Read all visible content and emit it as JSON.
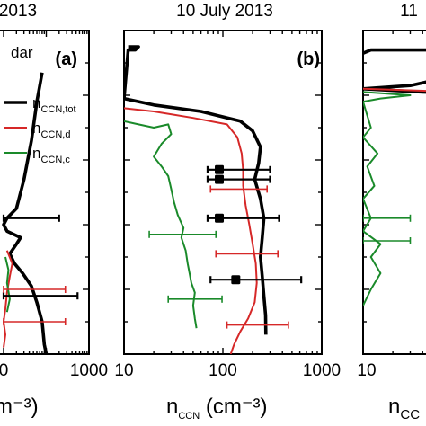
{
  "chart_data": [
    {
      "type": "line",
      "panel_label": "(a)",
      "title": "2013",
      "x_scale": "log",
      "xlim": [
        10,
        1000
      ],
      "x_tick_labels": [
        "0",
        "1000"
      ],
      "xlabel_visible": "m⁻³)",
      "legend": {
        "placement": "top-right",
        "entries": [
          {
            "label": "dar",
            "color": "#000000",
            "kind": "partial"
          },
          {
            "label": "n",
            "sub": "CCN,tot",
            "color": "#000000",
            "kind": "line"
          },
          {
            "label": "n",
            "sub": "CCN,d",
            "color": "#d62828",
            "kind": "line"
          },
          {
            "label": "n",
            "sub": "CCN,c",
            "color": "#1a8a2a",
            "kind": "line"
          }
        ]
      },
      "series": [
        {
          "name": "nCCN,tot",
          "color": "#000000",
          "points": [
            [
              80,
              0.13
            ],
            [
              60,
              0.22
            ],
            [
              45,
              0.34
            ],
            [
              30,
              0.46
            ],
            [
              20,
              0.55
            ],
            [
              12,
              0.58
            ],
            [
              10,
              0.6
            ],
            [
              12,
              0.62
            ],
            [
              25,
              0.64
            ],
            [
              20,
              0.66
            ],
            [
              14,
              0.69
            ],
            [
              18,
              0.72
            ],
            [
              28,
              0.75
            ],
            [
              45,
              0.79
            ],
            [
              60,
              0.84
            ],
            [
              80,
              0.9
            ],
            [
              90,
              0.97
            ],
            [
              100,
              1.0
            ]
          ]
        },
        {
          "name": "nCCN,d",
          "color": "#d62828",
          "points": [
            [
              12,
              0.68
            ],
            [
              16,
              0.72
            ],
            [
              14,
              0.76
            ],
            [
              12,
              0.81
            ],
            [
              11,
              0.86
            ],
            [
              10,
              0.9
            ],
            [
              11,
              0.94
            ],
            [
              10,
              0.98
            ]
          ]
        },
        {
          "name": "nCCN,c",
          "color": "#1a8a2a",
          "points": [
            [
              11,
              0.7
            ],
            [
              13,
              0.74
            ],
            [
              12,
              0.78
            ],
            [
              14,
              0.83
            ],
            [
              12,
              0.87
            ]
          ]
        }
      ],
      "errorbars": [
        {
          "color": "#000000",
          "x": 20,
          "y": 0.58,
          "xmin": 10,
          "xmax": 200
        },
        {
          "color": "#000000",
          "x": 20,
          "y": 0.82,
          "xmin": 10,
          "xmax": 540
        },
        {
          "color": "#d62828",
          "x": 20,
          "y": 0.8,
          "xmin": 10,
          "xmax": 280
        },
        {
          "color": "#d62828",
          "x": 20,
          "y": 0.9,
          "xmin": 10,
          "xmax": 280
        }
      ]
    },
    {
      "type": "line",
      "panel_label": "(b)",
      "title": "10 July 2013",
      "x_scale": "log",
      "xlim": [
        10,
        1000
      ],
      "x_tick_labels": [
        "10",
        "100",
        "1000"
      ],
      "xlabel": "n",
      "xlabel_sub": "CCN",
      "xlabel_units": "(cm⁻³)",
      "series": [
        {
          "name": "nCCN,tot",
          "color": "#000000",
          "points": [
            [
              11,
              0.05
            ],
            [
              14,
              0.05
            ],
            [
              13,
              0.06
            ],
            [
              11,
              0.06
            ],
            [
              10,
              0.21
            ],
            [
              20,
              0.23
            ],
            [
              60,
              0.25
            ],
            [
              150,
              0.28
            ],
            [
              200,
              0.31
            ],
            [
              240,
              0.36
            ],
            [
              230,
              0.41
            ],
            [
              210,
              0.46
            ],
            [
              240,
              0.52
            ],
            [
              260,
              0.58
            ],
            [
              250,
              0.64
            ],
            [
              240,
              0.7
            ],
            [
              250,
              0.76
            ],
            [
              260,
              0.82
            ],
            [
              270,
              0.88
            ],
            [
              272,
              0.94
            ]
          ]
        },
        {
          "name": "nCCN,d",
          "color": "#d62828",
          "points": [
            [
              10,
              0.24
            ],
            [
              20,
              0.25
            ],
            [
              50,
              0.27
            ],
            [
              110,
              0.29
            ],
            [
              140,
              0.33
            ],
            [
              155,
              0.38
            ],
            [
              160,
              0.43
            ],
            [
              160,
              0.48
            ],
            [
              170,
              0.54
            ],
            [
              185,
              0.6
            ],
            [
              200,
              0.66
            ],
            [
              215,
              0.72
            ],
            [
              220,
              0.78
            ],
            [
              210,
              0.84
            ],
            [
              180,
              0.89
            ],
            [
              150,
              0.93
            ],
            [
              130,
              0.97
            ],
            [
              120,
              1.0
            ]
          ]
        },
        {
          "name": "nCCN,c",
          "color": "#1a8a2a",
          "points": [
            [
              10,
              0.28
            ],
            [
              14,
              0.29
            ],
            [
              20,
              0.3
            ],
            [
              28,
              0.29
            ],
            [
              30,
              0.32
            ],
            [
              24,
              0.35
            ],
            [
              20,
              0.39
            ],
            [
              24,
              0.42
            ],
            [
              28,
              0.45
            ],
            [
              30,
              0.49
            ],
            [
              32,
              0.53
            ],
            [
              35,
              0.57
            ],
            [
              40,
              0.61
            ],
            [
              38,
              0.64
            ],
            [
              42,
              0.68
            ],
            [
              44,
              0.72
            ],
            [
              46,
              0.75
            ],
            [
              48,
              0.78
            ],
            [
              52,
              0.81
            ],
            [
              50,
              0.85
            ],
            [
              52,
              0.89
            ],
            [
              54,
              0.92
            ]
          ]
        }
      ],
      "errorbars": [
        {
          "color": "#000000",
          "x": 92,
          "y": 0.43,
          "xmin": 70,
          "xmax": 300
        },
        {
          "color": "#000000",
          "x": 92,
          "y": 0.46,
          "xmin": 70,
          "xmax": 300
        },
        {
          "color": "#000000",
          "x": 92,
          "y": 0.58,
          "xmin": 70,
          "xmax": 370
        },
        {
          "color": "#000000",
          "x": 135,
          "y": 0.77,
          "xmin": 75,
          "xmax": 620
        },
        {
          "color": "#d62828",
          "x": 100,
          "y": 0.49,
          "xmin": 75,
          "xmax": 280
        },
        {
          "color": "#d62828",
          "x": 170,
          "y": 0.69,
          "xmin": 85,
          "xmax": 360
        },
        {
          "color": "#d62828",
          "x": 200,
          "y": 0.91,
          "xmin": 110,
          "xmax": 460
        },
        {
          "color": "#1a8a2a",
          "x": 40,
          "y": 0.63,
          "xmin": 18,
          "xmax": 85
        },
        {
          "color": "#1a8a2a",
          "x": 50,
          "y": 0.83,
          "xmin": 28,
          "xmax": 98
        }
      ],
      "markers": [
        {
          "x": 92,
          "y": 0.43
        },
        {
          "x": 92,
          "y": 0.46
        },
        {
          "x": 92,
          "y": 0.58
        },
        {
          "x": 135,
          "y": 0.77
        }
      ]
    },
    {
      "type": "line",
      "title": "11",
      "x_scale": "log",
      "xlim": [
        10,
        1000
      ],
      "x_tick_labels": [
        "10"
      ],
      "xlabel_visible": "n",
      "xlabel_sub_visible": "CC",
      "series": [
        {
          "name": "nCCN,tot",
          "color": "#000000",
          "points": [
            [
              10,
              0.07
            ],
            [
              12,
              0.06
            ],
            [
              50,
              0.06
            ],
            [
              100,
              0.07
            ],
            [
              300,
              0.08
            ],
            [
              400,
              0.1
            ],
            [
              250,
              0.12
            ],
            [
              100,
              0.13
            ],
            [
              60,
              0.15
            ],
            [
              30,
              0.17
            ],
            [
              10,
              0.18
            ],
            [
              40,
              0.19
            ],
            [
              200,
              0.2
            ],
            [
              1000,
              0.21
            ]
          ]
        },
        {
          "name": "nCCN,d",
          "color": "#d62828",
          "points": [
            [
              10,
              0.18
            ],
            [
              100,
              0.19
            ],
            [
              300,
              0.2
            ],
            [
              1000,
              0.21
            ]
          ]
        },
        {
          "name": "nCCN,c",
          "color": "#1a8a2a",
          "points": [
            [
              10,
              0.19
            ],
            [
              30,
              0.2
            ],
            [
              15,
              0.21
            ],
            [
              10,
              0.22
            ],
            [
              12,
              0.3
            ],
            [
              10,
              0.33
            ],
            [
              14,
              0.38
            ],
            [
              11,
              0.42
            ],
            [
              13,
              0.48
            ],
            [
              10,
              0.52
            ],
            [
              12,
              0.58
            ],
            [
              10,
              0.62
            ],
            [
              15,
              0.66
            ],
            [
              12,
              0.7
            ],
            [
              15,
              0.75
            ],
            [
              12,
              0.8
            ],
            [
              10,
              0.85
            ]
          ]
        }
      ],
      "errorbars": [
        {
          "color": "#1a8a2a",
          "x": 12,
          "y": 0.58,
          "xmin": 10,
          "xmax": 30
        },
        {
          "color": "#1a8a2a",
          "x": 12,
          "y": 0.65,
          "xmin": 10,
          "xmax": 30
        }
      ]
    }
  ]
}
